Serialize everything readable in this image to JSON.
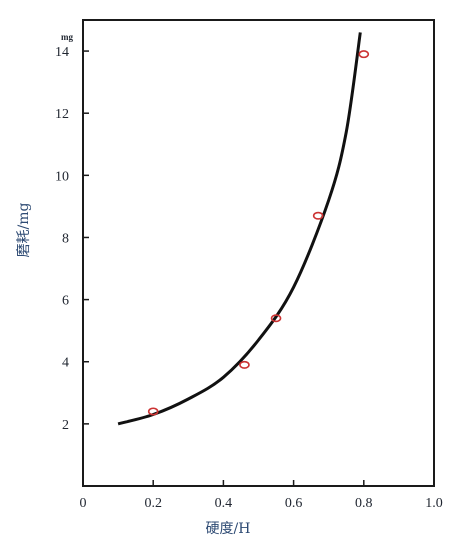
{
  "chart_data": {
    "type": "scatter",
    "xlabel": "硬度/H",
    "ylabel": "磨耗/mg",
    "y_unit_corner": "mg",
    "xlim": [
      0,
      1.0
    ],
    "ylim": [
      0,
      15
    ],
    "x_ticks": [
      0,
      0.2,
      0.4,
      0.6,
      0.8,
      1.0
    ],
    "x_tick_labels": [
      "0",
      "0.2",
      "0.4",
      "0.6",
      "0.8",
      "1.0"
    ],
    "y_ticks": [
      2,
      4,
      6,
      8,
      10,
      12,
      14
    ],
    "y_tick_labels": [
      "2",
      "4",
      "6",
      "8",
      "10",
      "12",
      "14"
    ],
    "grid": false,
    "series": [
      {
        "kind": "points",
        "x": [
          0.2,
          0.46,
          0.55,
          0.67,
          0.8
        ],
        "y": [
          2.4,
          3.9,
          5.4,
          8.7,
          13.9
        ]
      },
      {
        "kind": "fit-curve",
        "x": [
          0.1,
          0.2,
          0.3,
          0.4,
          0.5,
          0.6,
          0.7,
          0.75,
          0.79
        ],
        "y": [
          2.0,
          2.3,
          2.8,
          3.5,
          4.7,
          6.4,
          9.2,
          11.4,
          14.6
        ]
      }
    ],
    "colors": {
      "marker": "#cc3333",
      "curve": "#111111",
      "frame": "#1a1a1a",
      "axis_title": "#2d4a73"
    }
  }
}
